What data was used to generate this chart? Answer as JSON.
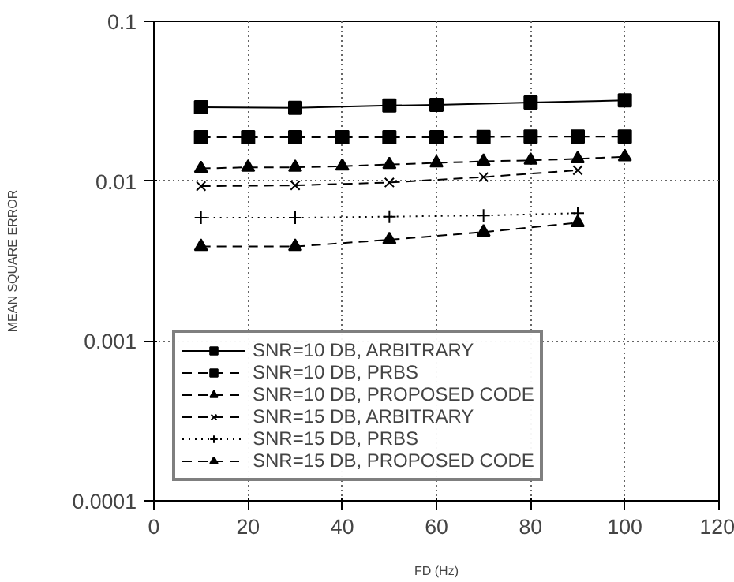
{
  "chart_data": {
    "type": "line",
    "xlabel": "FD (Hz)",
    "ylabel": "MEAN SQUARE ERROR",
    "log": "y",
    "xlim": [
      0,
      120
    ],
    "xticks": [
      0,
      20,
      40,
      60,
      80,
      100,
      120
    ],
    "ylim": [
      0.0001,
      0.1
    ],
    "yticks": [
      0.0001,
      0.001,
      0.01,
      0.1
    ],
    "grid": true,
    "legend": "bottom left",
    "series": [
      {
        "name": "SNR=10 DB, ARBITRARY",
        "color": "#000000",
        "marker": "square",
        "line_style": "solid",
        "x": [
          10,
          30,
          50,
          60,
          80,
          100
        ],
        "values": [
          0.029,
          0.0287,
          0.0297,
          0.03,
          0.031,
          0.032
        ]
      },
      {
        "name": "SNR=10 DB, PRBS",
        "color": "#000000",
        "marker": "square",
        "line_style": "dashed",
        "x": [
          10,
          20,
          30,
          40,
          50,
          60,
          70,
          80,
          90,
          100
        ],
        "values": [
          0.0188,
          0.0188,
          0.0188,
          0.0188,
          0.0188,
          0.0188,
          0.0189,
          0.019,
          0.019,
          0.019
        ]
      },
      {
        "name": "SNR=10 DB, PROPOSED CODE",
        "color": "#000000",
        "marker": "triangle",
        "line_style": "dashed",
        "x": [
          10,
          20,
          30,
          40,
          50,
          60,
          70,
          80,
          90,
          100
        ],
        "values": [
          0.012,
          0.0122,
          0.0122,
          0.0124,
          0.0127,
          0.013,
          0.0133,
          0.0135,
          0.0138,
          0.0142
        ]
      },
      {
        "name": "SNR=15 DB, ARBITRARY",
        "color": "#000000",
        "marker": "x",
        "line_style": "dashed",
        "x": [
          10,
          30,
          50,
          70,
          90
        ],
        "values": [
          0.0093,
          0.0094,
          0.0098,
          0.0106,
          0.0117
        ]
      },
      {
        "name": "SNR=15 DB, PRBS",
        "color": "#000000",
        "marker": "cross",
        "line_style": "dotted",
        "x": [
          10,
          30,
          50,
          70,
          90
        ],
        "values": [
          0.0059,
          0.0059,
          0.006,
          0.0061,
          0.0063
        ]
      },
      {
        "name": "SNR=15 DB, PROPOSED CODE",
        "color": "#000000",
        "marker": "triangle",
        "line_style": "dashed",
        "x": [
          10,
          30,
          50,
          70,
          90
        ],
        "values": [
          0.0039,
          0.0039,
          0.0043,
          0.0048,
          0.0055
        ]
      }
    ]
  }
}
